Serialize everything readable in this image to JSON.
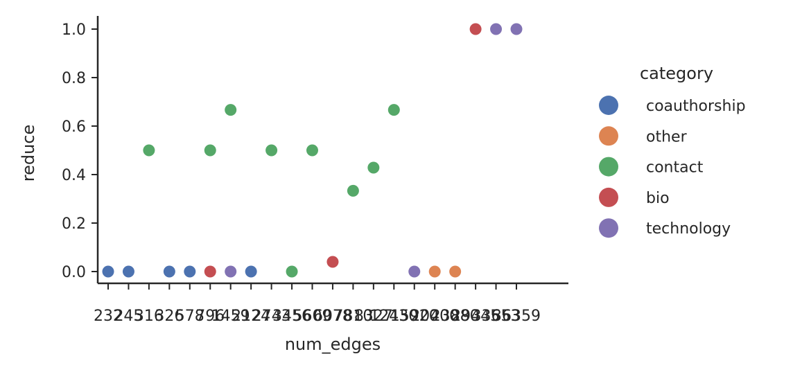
{
  "chart_data": {
    "type": "scatter",
    "xlabel": "num_edges",
    "ylabel": "reduce",
    "ylim": [
      0,
      1
    ],
    "yticks": [
      "0.0",
      "0.2",
      "0.4",
      "0.6",
      "0.8",
      "1.0"
    ],
    "grid": false,
    "legend_title": "category",
    "legend_position": "right",
    "categories": [
      "232",
      "245",
      "316",
      "326",
      "578",
      "796",
      "1459",
      "2124",
      "2743",
      "3456",
      "5609",
      "6078",
      "7810",
      "8327",
      "12430",
      "15920",
      "20400",
      "23880",
      "29445",
      "33653",
      "36359"
    ],
    "tick_labels": [
      "232",
      "245",
      "316",
      "326",
      "578",
      "796",
      "1459",
      "2124",
      "2743",
      "3456",
      "5609",
      "6078",
      "7810",
      "8327",
      "12430",
      "15920",
      "20400",
      "23880",
      "29445",
      "33653",
      "36359"
    ],
    "series": [
      {
        "name": "coauthorship",
        "color": "#4c72b0",
        "points": [
          [
            "232",
            0.0
          ],
          [
            "245",
            0.0
          ],
          [
            "326",
            0.0
          ],
          [
            "578",
            0.0
          ],
          [
            "2124",
            0.0
          ]
        ]
      },
      {
        "name": "other",
        "color": "#dd8452",
        "points": [
          [
            "20400",
            0.0
          ],
          [
            "23880",
            0.0
          ]
        ]
      },
      {
        "name": "contact",
        "color": "#55a868",
        "points": [
          [
            "316",
            0.5
          ],
          [
            "796",
            0.5
          ],
          [
            "1459",
            0.6667
          ],
          [
            "2743",
            0.5
          ],
          [
            "3456",
            0.0
          ],
          [
            "5609",
            0.5
          ],
          [
            "7810",
            0.3333
          ],
          [
            "8327",
            0.4286
          ],
          [
            "12430",
            0.6667
          ]
        ]
      },
      {
        "name": "bio",
        "color": "#c44e52",
        "points": [
          [
            "796",
            0.0
          ],
          [
            "6078",
            0.04
          ],
          [
            "29445",
            1.0
          ]
        ]
      },
      {
        "name": "technology",
        "color": "#8172b3",
        "points": [
          [
            "1459",
            0.0
          ],
          [
            "15920",
            0.0
          ],
          [
            "33653",
            1.0
          ],
          [
            "36359",
            1.0
          ]
        ]
      }
    ]
  }
}
